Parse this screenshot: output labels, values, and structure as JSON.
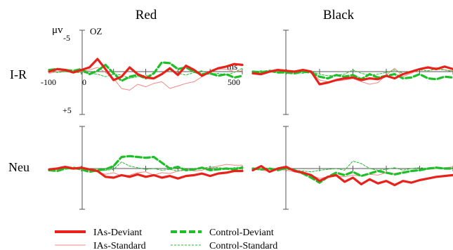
{
  "figure": {
    "columns": [
      "Red",
      "Black"
    ],
    "rows": [
      "I-R",
      "Neu"
    ],
    "y_axis": {
      "unit": "μv",
      "top_tick": "-5",
      "bottom_tick": "+5",
      "channel": "OZ"
    },
    "x_axis": {
      "unit": "ms",
      "start_tick": "-100",
      "zero_tick": "0",
      "end_tick": "500"
    }
  },
  "legend": {
    "position": "bottom",
    "items": [
      {
        "label": "IAs-Deviant",
        "color": "#e8221b",
        "style": "solid-thick"
      },
      {
        "label": "Control-Deviant",
        "color": "#1fbf2a",
        "style": "dashed-thick"
      },
      {
        "label": "IAs-Standard",
        "color": "#f08a84",
        "style": "solid-thin"
      },
      {
        "label": "Control-Standard",
        "color": "#1fbf2a",
        "style": "dashed-thin"
      }
    ]
  },
  "chart_data": {
    "type": "line",
    "x_unit": "ms",
    "y_unit": "μv",
    "y_axis_inverted": true,
    "xlim": [
      -100,
      500
    ],
    "ylim": [
      -5,
      5
    ],
    "panels": [
      {
        "row": "I-R",
        "column": "Red",
        "series": [
          {
            "name": "IAs-Deviant",
            "x": [
              -100,
              -75,
              -50,
              -25,
              0,
              25,
              50,
              75,
              100,
              125,
              150,
              175,
              200,
              225,
              250,
              275,
              300,
              325,
              350,
              375,
              400,
              425,
              450,
              475,
              500
            ],
            "y": [
              0,
              -0.3,
              -0.2,
              0.1,
              -0.2,
              -0.5,
              -1.5,
              -0.3,
              1,
              0.6,
              -0.5,
              0.3,
              0.7,
              0.8,
              0.3,
              -0.4,
              0.4,
              -0.7,
              -0.2,
              0.5,
              0,
              -0.4,
              -0.6,
              -0.9,
              -0.8
            ]
          },
          {
            "name": "IAs-Standard",
            "x": [
              -100,
              -75,
              -50,
              -25,
              0,
              25,
              50,
              75,
              100,
              125,
              150,
              175,
              200,
              225,
              250,
              275,
              300,
              325,
              350,
              375,
              400,
              425,
              450,
              475,
              500
            ],
            "y": [
              0.2,
              0,
              -0.1,
              0.1,
              0,
              -0.2,
              -0.5,
              0.1,
              0.8,
              2,
              2.2,
              1.5,
              1.8,
              1.4,
              1.2,
              2,
              1.7,
              1.4,
              1.2,
              0.6,
              0.1,
              -0.3,
              -0.3,
              0,
              -0.1
            ]
          },
          {
            "name": "Control-Deviant",
            "x": [
              -100,
              -75,
              -50,
              -25,
              0,
              25,
              50,
              75,
              100,
              125,
              150,
              175,
              200,
              225,
              250,
              275,
              300,
              325,
              350,
              375,
              400,
              425,
              450,
              475,
              500
            ],
            "y": [
              -0.2,
              -0.3,
              -0.2,
              -0.1,
              -0.3,
              0.3,
              -0.1,
              -0.8,
              0.2,
              1.1,
              0.6,
              0.4,
              0.8,
              0.2,
              -1.1,
              -1,
              -0.3,
              -0.5,
              0,
              0.3,
              0.2,
              0.5,
              0.3,
              0.7,
              0.5
            ]
          },
          {
            "name": "Control-Standard",
            "x": [
              -100,
              -75,
              -50,
              -25,
              0,
              25,
              50,
              75,
              100,
              125,
              150,
              175,
              200,
              225,
              250,
              275,
              300,
              325,
              350,
              375,
              400,
              425,
              450,
              475,
              500
            ],
            "y": [
              -0.1,
              0.1,
              0,
              0.1,
              0.1,
              0.2,
              0.3,
              0.6,
              0.3,
              0.4,
              0.8,
              0.6,
              0.4,
              0.9,
              0.3,
              -0.2,
              0.2,
              0.4,
              0.1,
              -0.1,
              0.3,
              0.2,
              0.4,
              0.1,
              -0.4
            ]
          }
        ]
      },
      {
        "row": "I-R",
        "column": "Black",
        "series": [
          {
            "name": "IAs-Deviant",
            "x": [
              -100,
              -75,
              -50,
              -25,
              0,
              25,
              50,
              75,
              100,
              125,
              150,
              175,
              200,
              225,
              250,
              275,
              300,
              325,
              350,
              375,
              400,
              425,
              450,
              475,
              500
            ],
            "y": [
              0.2,
              0.3,
              0,
              -0.2,
              -0.1,
              0,
              -0.2,
              0,
              1.5,
              1.3,
              1,
              0.8,
              0.7,
              1,
              0.8,
              0.9,
              0.5,
              0.8,
              0.3,
              0,
              -0.3,
              -0.5,
              -0.3,
              -0.6,
              -0.3
            ]
          },
          {
            "name": "IAs-Standard",
            "x": [
              -100,
              -75,
              -50,
              -25,
              0,
              25,
              50,
              75,
              100,
              125,
              150,
              175,
              200,
              225,
              250,
              275,
              300,
              325,
              350,
              375,
              400,
              425,
              450,
              475,
              500
            ],
            "y": [
              0.1,
              0,
              -0.1,
              0,
              -0.1,
              0,
              -0.2,
              0,
              1,
              1.2,
              1.1,
              1,
              0.8,
              1.2,
              1.5,
              1.3,
              0.4,
              -0.4,
              0.6,
              0.2,
              -0.3,
              -0.4,
              -0.5,
              -0.2,
              -0.1
            ]
          },
          {
            "name": "Control-Deviant",
            "x": [
              -100,
              -75,
              -50,
              -25,
              0,
              25,
              50,
              75,
              100,
              125,
              150,
              175,
              200,
              225,
              250,
              275,
              300,
              325,
              350,
              375,
              400,
              425,
              450,
              475,
              500
            ],
            "y": [
              0,
              0.1,
              -0.1,
              0.1,
              0.1,
              0.2,
              0,
              0.1,
              0.6,
              0.8,
              0.4,
              0.6,
              0.4,
              0.9,
              0.3,
              0.7,
              0.5,
              0.3,
              0.8,
              0.7,
              0.3,
              0.8,
              0.9,
              0.6,
              0.7
            ]
          },
          {
            "name": "Control-Standard",
            "x": [
              -100,
              -75,
              -50,
              -25,
              0,
              25,
              50,
              75,
              100,
              125,
              150,
              175,
              200,
              225,
              250,
              275,
              300,
              325,
              350,
              375,
              400,
              425,
              450,
              475,
              500
            ],
            "y": [
              0,
              -0.1,
              0,
              0.1,
              0,
              0.1,
              0.2,
              0,
              0.3,
              0.5,
              0.4,
              0.3,
              -0.2,
              0.2,
              0.4,
              0.3,
              0.1,
              -0.2,
              0.2,
              0,
              -0.2,
              -0.1,
              -0.3,
              -0.2,
              0
            ]
          }
        ]
      },
      {
        "row": "Neu",
        "column": "Red",
        "series": [
          {
            "name": "IAs-Deviant",
            "x": [
              -100,
              -75,
              -50,
              -25,
              0,
              25,
              50,
              75,
              100,
              125,
              150,
              175,
              200,
              225,
              250,
              275,
              300,
              325,
              350,
              375,
              400,
              425,
              450,
              475,
              500
            ],
            "y": [
              0.1,
              0,
              -0.2,
              0,
              -0.1,
              0.1,
              0.3,
              1,
              1.1,
              0.8,
              1,
              0.7,
              1,
              0.8,
              1.1,
              0.9,
              1.2,
              0.9,
              0.8,
              0.6,
              0.9,
              0.6,
              0.5,
              0.3,
              0.3
            ]
          },
          {
            "name": "IAs-Standard",
            "x": [
              -100,
              -75,
              -50,
              -25,
              0,
              25,
              50,
              75,
              100,
              125,
              150,
              175,
              200,
              225,
              250,
              275,
              300,
              325,
              350,
              375,
              400,
              425,
              450,
              475,
              500
            ],
            "y": [
              0,
              0.1,
              -0.1,
              0,
              0,
              0.2,
              0.4,
              0.7,
              0.5,
              0.9,
              0.8,
              0.5,
              0.4,
              0.8,
              0.5,
              0.6,
              0.3,
              0.1,
              0.3,
              0.2,
              -0.1,
              -0.3,
              -0.5,
              -0.4,
              -0.4
            ]
          },
          {
            "name": "Control-Deviant",
            "x": [
              -100,
              -75,
              -50,
              -25,
              0,
              25,
              50,
              75,
              100,
              125,
              150,
              175,
              200,
              225,
              250,
              275,
              300,
              325,
              350,
              375,
              400,
              425,
              450,
              475,
              500
            ],
            "y": [
              0.2,
              0.3,
              0,
              -0.1,
              0.1,
              0.4,
              0.2,
              0.1,
              -0.3,
              -1.4,
              -1.5,
              -1.4,
              -1.3,
              -1.4,
              -0.7,
              0,
              -0.2,
              0.2,
              0.1,
              -0.1,
              0.2,
              0.1,
              0,
              0.1,
              -0.1
            ]
          },
          {
            "name": "Control-Standard",
            "x": [
              -100,
              -75,
              -50,
              -25,
              0,
              25,
              50,
              75,
              100,
              125,
              150,
              175,
              200,
              225,
              250,
              275,
              300,
              325,
              350,
              375,
              400,
              425,
              450,
              475,
              500
            ],
            "y": [
              0,
              0.1,
              0,
              0.1,
              0,
              0.1,
              0,
              0.2,
              0.1,
              -0.8,
              -0.3,
              -0.1,
              0.1,
              0,
              0.2,
              0.1,
              0.3,
              0.2,
              0.1,
              0,
              -0.2,
              -0.1,
              0,
              -0.1,
              -0.2
            ]
          }
        ]
      },
      {
        "row": "Neu",
        "column": "Black",
        "series": [
          {
            "name": "IAs-Deviant",
            "x": [
              -100,
              -75,
              -50,
              -25,
              0,
              25,
              50,
              75,
              100,
              125,
              150,
              175,
              200,
              225,
              250,
              275,
              300,
              325,
              350,
              375,
              400,
              425,
              450,
              475,
              500
            ],
            "y": [
              0.2,
              -0.3,
              0.4,
              0,
              -0.2,
              0.3,
              0.5,
              0.8,
              1.5,
              1,
              0.8,
              1.6,
              1.1,
              1.9,
              1.3,
              1.8,
              1.5,
              2,
              1.5,
              1.7,
              1.4,
              1.2,
              1,
              0.9,
              0.8
            ]
          },
          {
            "name": "IAs-Standard",
            "x": [
              -100,
              -75,
              -50,
              -25,
              0,
              25,
              50,
              75,
              100,
              125,
              150,
              175,
              200,
              225,
              250,
              275,
              300,
              325,
              350,
              375,
              400,
              425,
              450,
              475,
              500
            ],
            "y": [
              0,
              0.2,
              0.3,
              0.1,
              0.2,
              0.4,
              0.6,
              0.8,
              1.2,
              1,
              0.9,
              1,
              0.8,
              0.9,
              0.7,
              0.8,
              0.5,
              0.6,
              0.4,
              0.3,
              0.2,
              0.1,
              0,
              -0.1,
              -0.2
            ]
          },
          {
            "name": "Control-Deviant",
            "x": [
              -100,
              -75,
              -50,
              -25,
              0,
              25,
              50,
              75,
              100,
              125,
              150,
              175,
              200,
              225,
              250,
              275,
              300,
              325,
              350,
              375,
              400,
              425,
              450,
              475,
              500
            ],
            "y": [
              0,
              0.1,
              0,
              0.2,
              -0.1,
              0.2,
              0.6,
              1.1,
              1.7,
              1,
              0.5,
              0.8,
              0.4,
              0.9,
              0.6,
              0.3,
              0.5,
              0.7,
              0.5,
              0.3,
              0.2,
              0,
              -0.1,
              0,
              0
            ]
          },
          {
            "name": "Control-Standard",
            "x": [
              -100,
              -75,
              -50,
              -25,
              0,
              25,
              50,
              75,
              100,
              125,
              150,
              175,
              200,
              225,
              250,
              275,
              300,
              325,
              350,
              375,
              400,
              425,
              450,
              475,
              500
            ],
            "y": [
              0.1,
              0,
              0.1,
              0,
              0.1,
              0.2,
              0.3,
              0.4,
              0.2,
              0.1,
              0,
              0.2,
              -0.9,
              -0.6,
              0,
              0.2,
              0.1,
              -0.1,
              0.2,
              0,
              -0.1,
              0,
              -0.2,
              0,
              -0.1
            ]
          }
        ]
      }
    ]
  }
}
